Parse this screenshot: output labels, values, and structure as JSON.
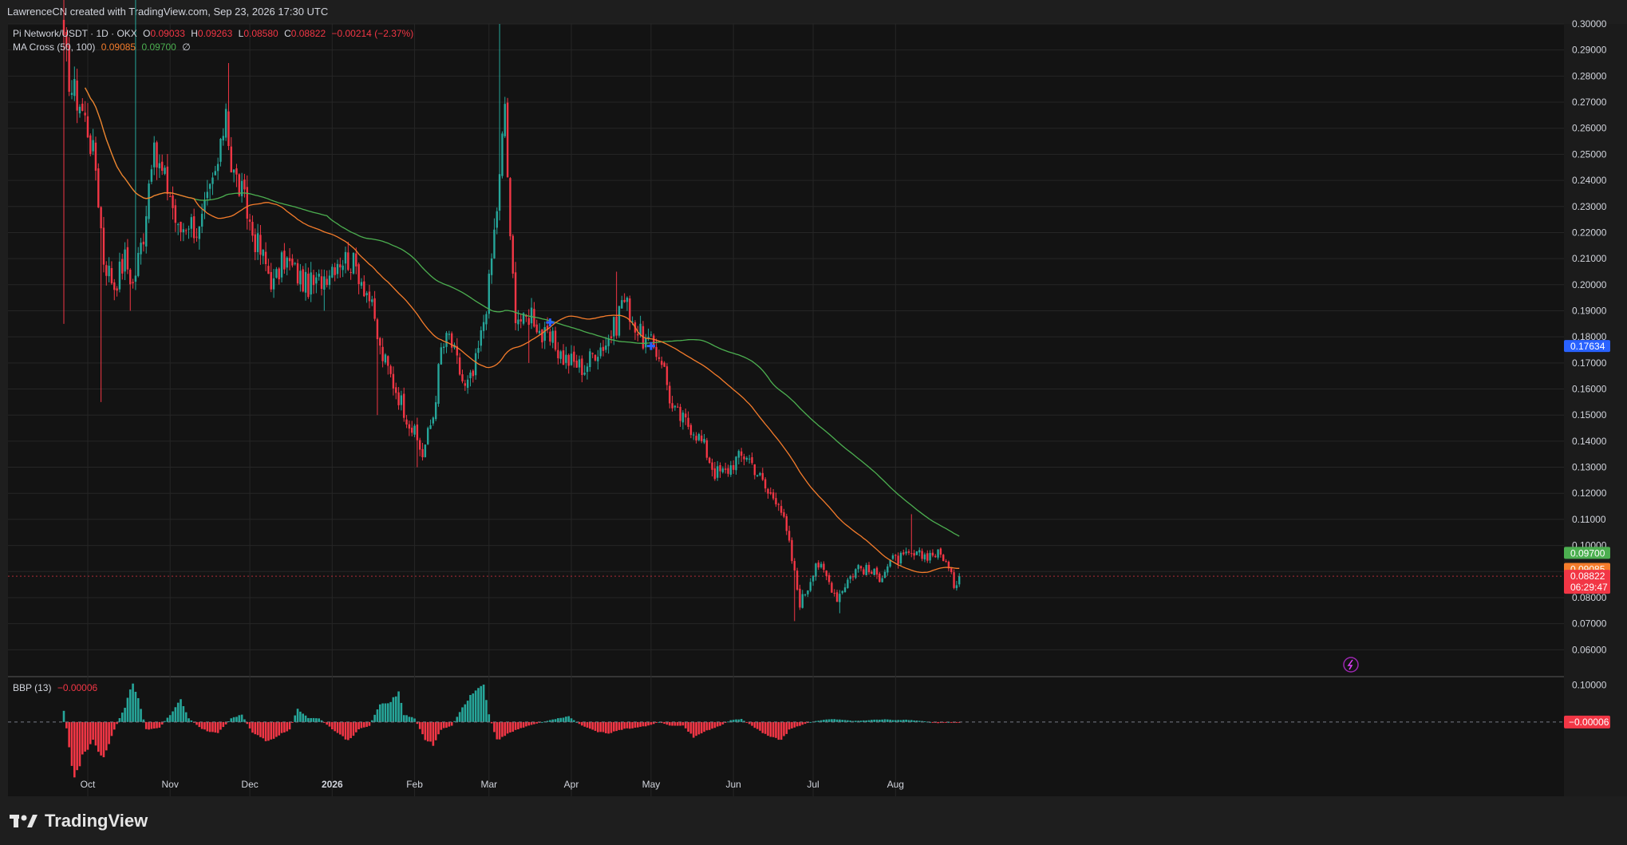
{
  "header": {
    "credit": "LawrenceCN created with TradingView.com, Sep 23, 2026 17:30 UTC"
  },
  "legend": {
    "symbol": "Pi Network/USDT · 1D · OKX",
    "o_label": "O",
    "o_value": "0.09033",
    "h_label": "H",
    "h_value": "0.09263",
    "l_label": "L",
    "l_value": "0.08580",
    "c_label": "C",
    "c_value": "0.08822",
    "change": "−0.00214 (−2.37%)",
    "ma_title": "MA Cross (50, 100)",
    "ma50_value": "0.09085",
    "ma100_value": "0.09700",
    "ma_extra": "∅",
    "bbp_title": "BBP (13)",
    "bbp_value": "−0.00006"
  },
  "brand": {
    "name": "TradingView"
  },
  "colors": {
    "background": "#131313",
    "grid": "#262626",
    "up": "#26a69a",
    "down": "#f23645",
    "ma50": "#f57c2b",
    "ma100": "#4caf50",
    "cross": "#2962ff",
    "text": "#d1d4dc"
  },
  "chart_data": {
    "type": "candlestick",
    "title": "Pi Network/USDT · 1D · OKX",
    "ylim": [
      0.05,
      0.3
    ],
    "y_ticks": [
      "0.30000",
      "0.29000",
      "0.28000",
      "0.27000",
      "0.26000",
      "0.25000",
      "0.24000",
      "0.23000",
      "0.22000",
      "0.21000",
      "0.20000",
      "0.19000",
      "0.18000",
      "0.17000",
      "0.16000",
      "0.15000",
      "0.14000",
      "0.13000",
      "0.12000",
      "0.11000",
      "0.10000",
      "0.09000",
      "0.08000",
      "0.07000",
      "0.06000"
    ],
    "x_ticks": [
      {
        "label": "Oct",
        "day": 9
      },
      {
        "label": "Nov",
        "day": 40
      },
      {
        "label": "Dec",
        "day": 70
      },
      {
        "label": "2026",
        "day": 101
      },
      {
        "label": "Feb",
        "day": 132
      },
      {
        "label": "Mar",
        "day": 160
      },
      {
        "label": "Apr",
        "day": 191
      },
      {
        "label": "May",
        "day": 221
      },
      {
        "label": "Jun",
        "day": 252
      },
      {
        "label": "Jul",
        "day": 282
      },
      {
        "label": "Aug",
        "day": 313
      }
    ],
    "price_close_anchors": [
      [
        0,
        0.29
      ],
      [
        3,
        0.275
      ],
      [
        6,
        0.27
      ],
      [
        9,
        0.26
      ],
      [
        12,
        0.245
      ],
      [
        15,
        0.21
      ],
      [
        19,
        0.2
      ],
      [
        23,
        0.21
      ],
      [
        26,
        0.2
      ],
      [
        30,
        0.22
      ],
      [
        33,
        0.25
      ],
      [
        36,
        0.245
      ],
      [
        40,
        0.235
      ],
      [
        43,
        0.22
      ],
      [
        47,
        0.225
      ],
      [
        51,
        0.22
      ],
      [
        55,
        0.235
      ],
      [
        59,
        0.25
      ],
      [
        61,
        0.27
      ],
      [
        63,
        0.245
      ],
      [
        67,
        0.235
      ],
      [
        71,
        0.22
      ],
      [
        75,
        0.21
      ],
      [
        79,
        0.2
      ],
      [
        83,
        0.21
      ],
      [
        87,
        0.205
      ],
      [
        91,
        0.2
      ],
      [
        95,
        0.2
      ],
      [
        99,
        0.205
      ],
      [
        103,
        0.21
      ],
      [
        107,
        0.21
      ],
      [
        111,
        0.205
      ],
      [
        115,
        0.195
      ],
      [
        119,
        0.175
      ],
      [
        123,
        0.165
      ],
      [
        127,
        0.155
      ],
      [
        131,
        0.145
      ],
      [
        135,
        0.135
      ],
      [
        139,
        0.15
      ],
      [
        142,
        0.175
      ],
      [
        145,
        0.18
      ],
      [
        148,
        0.17
      ],
      [
        151,
        0.16
      ],
      [
        154,
        0.165
      ],
      [
        157,
        0.18
      ],
      [
        160,
        0.2
      ],
      [
        162,
        0.22
      ],
      [
        164,
        0.24
      ],
      [
        166,
        0.27
      ],
      [
        168,
        0.215
      ],
      [
        170,
        0.19
      ],
      [
        173,
        0.185
      ],
      [
        176,
        0.19
      ],
      [
        180,
        0.18
      ],
      [
        184,
        0.178
      ],
      [
        188,
        0.172
      ],
      [
        192,
        0.17
      ],
      [
        196,
        0.168
      ],
      [
        200,
        0.175
      ],
      [
        204,
        0.178
      ],
      [
        208,
        0.185
      ],
      [
        210,
        0.195
      ],
      [
        213,
        0.19
      ],
      [
        216,
        0.182
      ],
      [
        219,
        0.178
      ],
      [
        222,
        0.176
      ],
      [
        225,
        0.172
      ],
      [
        229,
        0.152
      ],
      [
        233,
        0.148
      ],
      [
        237,
        0.145
      ],
      [
        241,
        0.138
      ],
      [
        245,
        0.128
      ],
      [
        249,
        0.128
      ],
      [
        253,
        0.133
      ],
      [
        257,
        0.135
      ],
      [
        261,
        0.128
      ],
      [
        265,
        0.12
      ],
      [
        269,
        0.118
      ],
      [
        273,
        0.1
      ],
      [
        277,
        0.078
      ],
      [
        280,
        0.084
      ],
      [
        283,
        0.094
      ],
      [
        287,
        0.088
      ],
      [
        291,
        0.08
      ],
      [
        295,
        0.087
      ],
      [
        299,
        0.092
      ],
      [
        303,
        0.09
      ],
      [
        307,
        0.088
      ],
      [
        311,
        0.094
      ],
      [
        315,
        0.095
      ],
      [
        319,
        0.096
      ],
      [
        323,
        0.096
      ],
      [
        327,
        0.097
      ],
      [
        331,
        0.096
      ],
      [
        335,
        0.085
      ],
      [
        337,
        0.0882
      ]
    ],
    "bbp_anchors": [
      [
        0,
        0.03
      ],
      [
        4,
        -0.16
      ],
      [
        7,
        -0.09
      ],
      [
        11,
        -0.05
      ],
      [
        15,
        -0.1
      ],
      [
        19,
        -0.02
      ],
      [
        23,
        0.04
      ],
      [
        26,
        0.11
      ],
      [
        28,
        0.06
      ],
      [
        31,
        -0.02
      ],
      [
        36,
        -0.015
      ],
      [
        40,
        0.02
      ],
      [
        44,
        0.06
      ],
      [
        47,
        0.01
      ],
      [
        52,
        -0.02
      ],
      [
        58,
        -0.03
      ],
      [
        63,
        0.01
      ],
      [
        67,
        0.02
      ],
      [
        71,
        -0.03
      ],
      [
        76,
        -0.05
      ],
      [
        80,
        -0.04
      ],
      [
        85,
        -0.02
      ],
      [
        88,
        0.035
      ],
      [
        92,
        0.01
      ],
      [
        96,
        0.01
      ],
      [
        103,
        -0.03
      ],
      [
        107,
        -0.05
      ],
      [
        111,
        -0.02
      ],
      [
        115,
        -0.01
      ],
      [
        119,
        0.05
      ],
      [
        123,
        0.055
      ],
      [
        126,
        0.08
      ],
      [
        128,
        0.02
      ],
      [
        132,
        0.01
      ],
      [
        136,
        -0.05
      ],
      [
        139,
        -0.06
      ],
      [
        142,
        -0.02
      ],
      [
        146,
        -0.01
      ],
      [
        150,
        0.04
      ],
      [
        154,
        0.08
      ],
      [
        158,
        0.1
      ],
      [
        160,
        0.02
      ],
      [
        163,
        -0.05
      ],
      [
        167,
        -0.03
      ],
      [
        171,
        -0.02
      ],
      [
        175,
        -0.01
      ],
      [
        180,
        0.0
      ],
      [
        186,
        0.01
      ],
      [
        190,
        0.015
      ],
      [
        195,
        -0.01
      ],
      [
        200,
        -0.025
      ],
      [
        205,
        -0.03
      ],
      [
        210,
        -0.02
      ],
      [
        215,
        -0.015
      ],
      [
        220,
        -0.01
      ],
      [
        224,
        0.0
      ],
      [
        228,
        -0.01
      ],
      [
        233,
        -0.01
      ],
      [
        237,
        -0.04
      ],
      [
        240,
        -0.03
      ],
      [
        243,
        -0.02
      ],
      [
        247,
        -0.01
      ],
      [
        251,
        0.005
      ],
      [
        255,
        0.008
      ],
      [
        259,
        -0.01
      ],
      [
        263,
        -0.03
      ],
      [
        267,
        -0.04
      ],
      [
        270,
        -0.05
      ],
      [
        273,
        -0.02
      ],
      [
        277,
        -0.01
      ],
      [
        281,
        0.0
      ],
      [
        285,
        0.005
      ],
      [
        289,
        0.008
      ],
      [
        293,
        0.006
      ],
      [
        297,
        0.003
      ],
      [
        301,
        0.004
      ],
      [
        305,
        0.006
      ],
      [
        309,
        0.007
      ],
      [
        313,
        0.005
      ],
      [
        317,
        0.006
      ],
      [
        321,
        0.004
      ],
      [
        325,
        0.001
      ],
      [
        329,
        -0.003
      ],
      [
        333,
        0.0
      ],
      [
        337,
        -6e-05
      ]
    ],
    "bbp_ylim": [
      -0.2,
      0.12
    ],
    "bbp_ticks": [
      "0.10000"
    ],
    "cross_markers": [
      {
        "day": 183,
        "value": 0.1855
      },
      {
        "day": 221,
        "value": 0.1765
      }
    ],
    "price_badges": [
      {
        "label": "0.17634",
        "value": 0.17634,
        "color": "#2962ff"
      },
      {
        "label": "0.09700",
        "value": 0.097,
        "color": "#4caf50"
      },
      {
        "label": "0.09085",
        "value": 0.09085,
        "color": "#f57c2b"
      },
      {
        "label": "0.08822",
        "value": 0.08822,
        "color": "#f23645",
        "sub": "06:29:47"
      }
    ],
    "bbp_badge": {
      "label": "−0.00006",
      "value": -6e-05
    }
  }
}
